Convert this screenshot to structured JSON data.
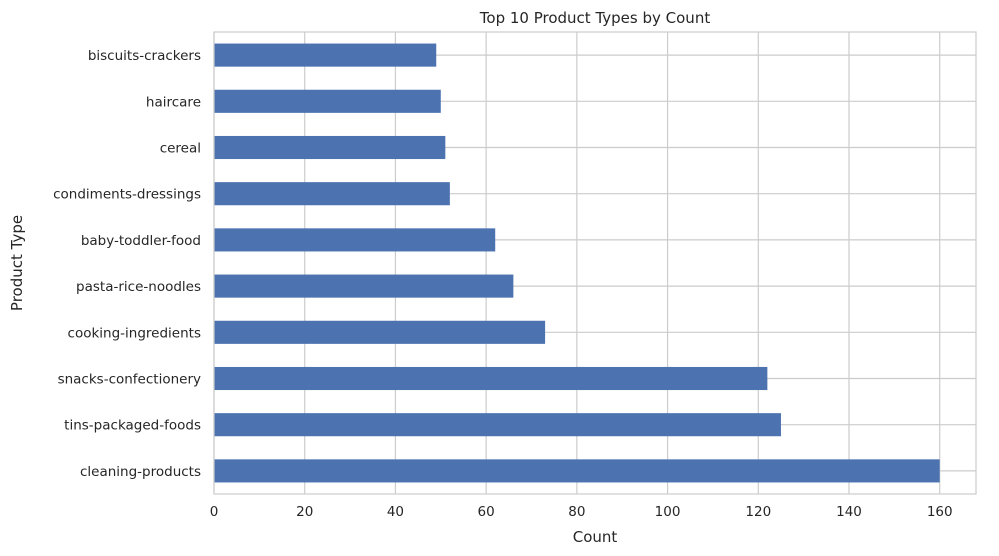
{
  "chart_data": {
    "type": "bar",
    "orientation": "horizontal",
    "title": "Top 10 Product Types by Count",
    "xlabel": "Count",
    "ylabel": "Product Type",
    "categories": [
      "cleaning-products",
      "tins-packaged-foods",
      "snacks-confectionery",
      "cooking-ingredients",
      "pasta-rice-noodles",
      "baby-toddler-food",
      "condiments-dressings",
      "cereal",
      "haircare",
      "biscuits-crackers"
    ],
    "values": [
      160,
      125,
      122,
      73,
      66,
      62,
      52,
      51,
      50,
      49
    ],
    "xlim": [
      0,
      168
    ],
    "xticks": [
      0,
      20,
      40,
      60,
      80,
      100,
      120,
      140,
      160
    ],
    "grid": true,
    "bar_color": "#4c72b0"
  }
}
